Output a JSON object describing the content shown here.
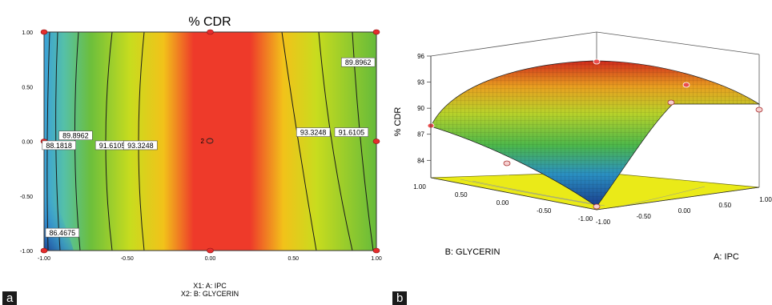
{
  "panels": {
    "a_label": "a",
    "b_label": "b"
  },
  "chart_data": [
    {
      "type": "contour",
      "title": "% CDR",
      "xlabel": "X1: A: IPC",
      "ylabel": "X2: B: GLYCERIN",
      "xlim": [
        -1,
        1
      ],
      "ylim": [
        -1,
        1
      ],
      "x_ticks": [
        "-1.00",
        "-0.50",
        "0.00",
        "0.50",
        "1.00"
      ],
      "y_ticks": [
        "1.00",
        "0.50",
        "0.00",
        "-0.50",
        "-1.00"
      ],
      "contour_labels": [
        {
          "text": "89.8962",
          "x": 0.89,
          "y": 0.72
        },
        {
          "text": "93.3248",
          "x": 0.62,
          "y": 0.08
        },
        {
          "text": "91.6105",
          "x": 0.85,
          "y": 0.08
        },
        {
          "text": "89.8962",
          "x": -0.81,
          "y": 0.05
        },
        {
          "text": "88.1818",
          "x": -0.91,
          "y": -0.04
        },
        {
          "text": "91.6105",
          "x": -0.59,
          "y": -0.04
        },
        {
          "text": "93.3248",
          "x": -0.42,
          "y": -0.04
        },
        {
          "text": "86.4675",
          "x": -0.89,
          "y": -0.84
        }
      ],
      "center_point": {
        "text": "2",
        "x": 0.0,
        "y": 0.0
      },
      "design_points": [
        [
          -1,
          1
        ],
        [
          0,
          1
        ],
        [
          1,
          1
        ],
        [
          -1,
          0
        ],
        [
          1,
          0
        ],
        [
          -1,
          -1
        ],
        [
          0,
          -1
        ],
        [
          1,
          -1
        ]
      ]
    },
    {
      "type": "surface",
      "zlabel": "% CDR",
      "xlabel": "A: IPC",
      "ylabel": "B: GLYCERIN",
      "z_ticks": [
        "96",
        "93",
        "90",
        "87",
        "84"
      ],
      "x_ticks": [
        "-1.00",
        "-0.50",
        "0.00",
        "0.50",
        "1.00"
      ],
      "y_ticks": [
        "1.00",
        "0.50",
        "0.00",
        "-0.50",
        "-1.00"
      ],
      "zlim": [
        82,
        96
      ]
    }
  ]
}
